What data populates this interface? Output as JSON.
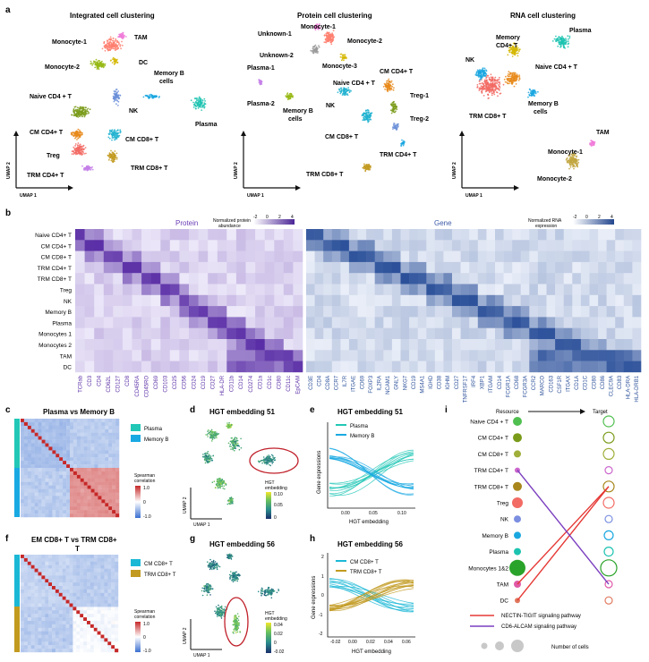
{
  "colors": {
    "protein_heat": "#5a2ea6",
    "gene_heat": "#2a4f99",
    "plasma": "#22c7b6",
    "memory_b": "#19a9e2",
    "cm_cd8": "#1bb8d6",
    "trm_cd8": "#c29a20",
    "corr_high": "#c62828",
    "corr_low": "#3a6fd0",
    "nectin": "#e53935",
    "cd6": "#7b3fbf"
  },
  "panel_a": {
    "label": "a",
    "integrated": {
      "title": "Integrated cell clustering",
      "clusters": [
        {
          "name": "Monocyte-1",
          "color": "#ff7f6e"
        },
        {
          "name": "TAM",
          "color": "#f07bd8"
        },
        {
          "name": "DC",
          "color": "#d5b700"
        },
        {
          "name": "Monocyte-2",
          "color": "#97b814"
        },
        {
          "name": "Memory B cells",
          "color": "#1aa7e0"
        },
        {
          "name": "Naive CD4 + T",
          "color": "#7a9b1a"
        },
        {
          "name": "NK",
          "color": "#6b8fd8"
        },
        {
          "name": "Plasma",
          "color": "#1cc3b0"
        },
        {
          "name": "CM CD4+ T",
          "color": "#e88a1a"
        },
        {
          "name": "CM CD8+ T",
          "color": "#22b3d0"
        },
        {
          "name": "Treg",
          "color": "#f26b64"
        },
        {
          "name": "TRM CD4+ T",
          "color": "#c47fe8"
        },
        {
          "name": "TRM CD8+ T",
          "color": "#c29a20"
        }
      ]
    },
    "protein": {
      "title": "Protein cell clustering",
      "labels": [
        "Monocyte-1",
        "Unknown-1",
        "Monocyte-2",
        "Unknown-2",
        "Monocyte-3",
        "Plasma-1",
        "Plasma-2",
        "Memory B cells",
        "Naive CD4 + T",
        "CM CD4+ T",
        "Treg-1",
        "NK",
        "Treg-2",
        "CM CD8+ T",
        "TRM CD4+ T",
        "TRM CD8+ T"
      ]
    },
    "rna": {
      "title": "RNA cell clustering",
      "labels": [
        "Plasma",
        "Memory CD4+ T",
        "NK",
        "Naive CD4 + T",
        "Memory B cells",
        "TRM CD8+ T",
        "TAM",
        "Monocyte-1",
        "Monocyte-2"
      ]
    },
    "umap1": "UMAP 1",
    "umap2": "UMAP 2"
  },
  "panel_b": {
    "label": "b",
    "protein_title": "Protein",
    "gene_title": "Gene",
    "protein_scale_title": "Normalized protein abundance",
    "gene_scale_title": "Normalized RNA expression",
    "scale_ticks": [
      "-2",
      "0",
      "2",
      "4"
    ],
    "rows": [
      "Naive CD4+ T",
      "CM CD4+ T",
      "CM CD8+ T",
      "TRM CD4+ T",
      "TRM CD8+ T",
      "Treg",
      "NK",
      "Memory B",
      "Plasma",
      "Monocytes 1",
      "Monocytes 2",
      "TAM",
      "DC"
    ],
    "protein_cols": [
      "TCRab",
      "CD3",
      "CD4",
      "CD62L",
      "CD127",
      "CD8",
      "CD45RA",
      "CD45RO",
      "CD69",
      "CD103",
      "CD25",
      "CD56",
      "CD24",
      "CD19",
      "CD27",
      "HLA-DR",
      "CD11b",
      "CD14",
      "CD274",
      "CD1a",
      "CD1c",
      "CD80",
      "CD11c",
      "EpCAM"
    ],
    "gene_cols": [
      "CD3E",
      "CD4",
      "CD8A",
      "CCR7",
      "IL7R",
      "ITGAE",
      "CD69",
      "FOXP3",
      "IL2RA",
      "NCAM1",
      "GNLY",
      "NKG7",
      "CD19",
      "MS4A1",
      "IGHD",
      "CD38",
      "IGHM",
      "CD27",
      "TNFRSF17",
      "IRF4",
      "XBP1",
      "ITGAM",
      "CD14",
      "FCGR1A",
      "CD68",
      "FCGR3A",
      "CCR2",
      "MARCO",
      "CD163",
      "CSF1R",
      "ITGAX",
      "CD1A",
      "CD1C",
      "CD80",
      "CD86",
      "CLEC9A",
      "CD83",
      "HLA-DRA",
      "HLA-DRB1"
    ]
  },
  "panel_c": {
    "label": "c",
    "title": "Plasma vs Memory B",
    "legend": [
      "Plasma",
      "Memory B"
    ],
    "corr_title": "Spearman correlation",
    "corr_ticks": [
      "1.0",
      "0",
      "-1.0"
    ]
  },
  "panel_d": {
    "label": "d",
    "title": "HGT embedding 51",
    "cbar_title": "HGT embedding",
    "cbar_ticks": [
      "0.10",
      "0.05",
      "0"
    ],
    "umap1": "UMAP 1",
    "umap2": "UMAP 2"
  },
  "panel_e": {
    "label": "e",
    "title": "HGT embedding 51",
    "legend": [
      "Plasma",
      "Memory B"
    ],
    "ylabel": "Gene expressions",
    "xlabel": "HGT embedding",
    "xticks": [
      "0.00",
      "0.05",
      "0.10"
    ]
  },
  "panel_f": {
    "label": "f",
    "title_line1": "EM CD8+ T vs TRM CD8+",
    "title_line2": "T",
    "legend": [
      "CM CD8+ T",
      "TRM CD8+ T"
    ],
    "corr_title": "Spearman correlation",
    "corr_ticks": [
      "1.0",
      "0",
      "-1.0"
    ]
  },
  "panel_g": {
    "label": "g",
    "title": "HGT embedding 56",
    "cbar_title": "HGT embedding",
    "cbar_ticks": [
      "0.04",
      "0.02",
      "0",
      "-0.02"
    ],
    "umap1": "UMAP 1",
    "umap2": "UMAP 2"
  },
  "panel_h": {
    "label": "h",
    "title": "HGT embedding 56",
    "legend": [
      "CM CD8+ T",
      "TRM CD8+ T"
    ],
    "ylabel": "Gene expressions",
    "xlabel": "HGT embedding",
    "yticks": [
      "2",
      "1",
      "0",
      "-1",
      "-2"
    ],
    "xticks": [
      "-0.02",
      "0.00",
      "0.02",
      "0.04",
      "0.06"
    ]
  },
  "panel_i": {
    "label": "i",
    "resource": "Resource",
    "target": "Target",
    "cells": [
      {
        "name": "Naive CD4 + T",
        "color": "#4fbf4f",
        "res_size": 5,
        "tgt_size": 6
      },
      {
        "name": "CM CD4+ T",
        "color": "#7a9b1a",
        "res_size": 5,
        "tgt_size": 6
      },
      {
        "name": "CM CD8+ T",
        "color": "#a0ae3a",
        "res_size": 4,
        "tgt_size": 6
      },
      {
        "name": "TRM CD4+ T",
        "color": "#cc66cc",
        "res_size": 3,
        "tgt_size": 4
      },
      {
        "name": "TRM CD8+ T",
        "color": "#a8861c",
        "res_size": 5,
        "tgt_size": 6
      },
      {
        "name": "Treg",
        "color": "#f26b64",
        "res_size": 6,
        "tgt_size": 6
      },
      {
        "name": "NK",
        "color": "#7b8ee0",
        "res_size": 4,
        "tgt_size": 4
      },
      {
        "name": "Memory B",
        "color": "#1aa7e0",
        "res_size": 4,
        "tgt_size": 5
      },
      {
        "name": "Plasma",
        "color": "#1cc3b0",
        "res_size": 4,
        "tgt_size": 5
      },
      {
        "name": "Monocytes 1&2",
        "color": "#2aa32a",
        "res_size": 9,
        "tgt_size": 9
      },
      {
        "name": "TAM",
        "color": "#e05aa8",
        "res_size": 4,
        "tgt_size": 4
      },
      {
        "name": "DC",
        "color": "#e07a5f",
        "res_size": 3,
        "tgt_size": 4
      }
    ],
    "pathways": [
      "NECTIN-TIGIT signaling pathway",
      "CD6-ALCAM signaling pathway"
    ],
    "size_legend": "Number of cells"
  }
}
